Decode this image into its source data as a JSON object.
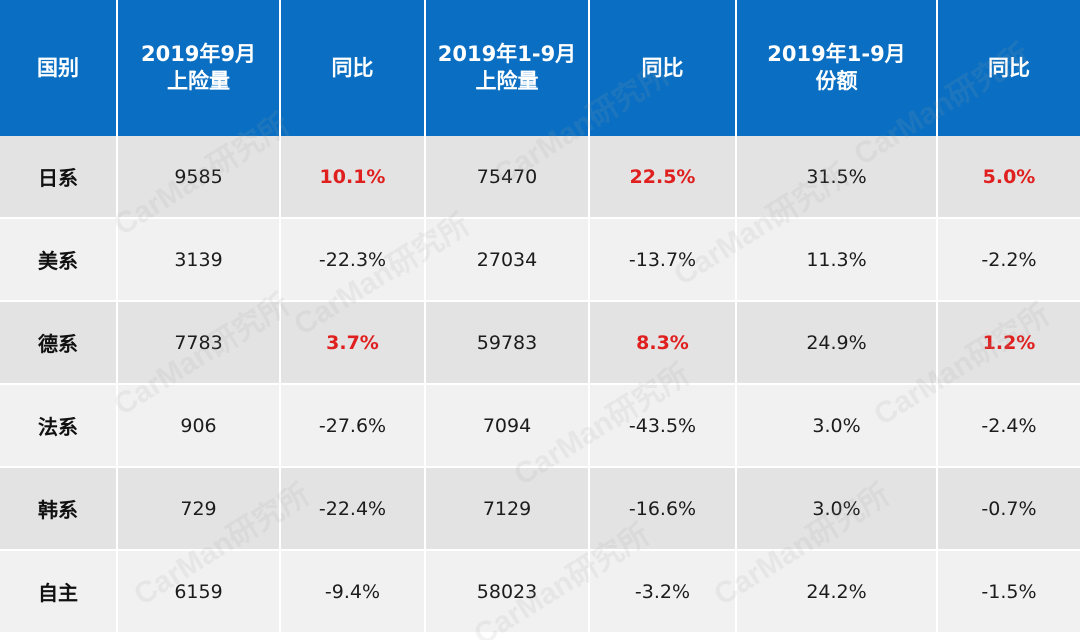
{
  "header": [
    "国别",
    "2019年9月\n上险量",
    "同比",
    "2019年1-9月\n上险量",
    "同比",
    "2019年1-9月\n份额",
    "同比"
  ],
  "rows": [
    {
      "country": "日系",
      "sep": "9585",
      "sep_yoy": "10.1%",
      "ytd": "75470",
      "ytd_yoy": "22.5%",
      "share": "31.5%",
      "share_yoy": "5.0%",
      "positive": [
        true,
        true,
        true
      ]
    },
    {
      "country": "美系",
      "sep": "3139",
      "sep_yoy": "-22.3%",
      "ytd": "27034",
      "ytd_yoy": "-13.7%",
      "share": "11.3%",
      "share_yoy": "-2.2%",
      "positive": [
        false,
        false,
        false
      ]
    },
    {
      "country": "德系",
      "sep": "7783",
      "sep_yoy": "3.7%",
      "ytd": "59783",
      "ytd_yoy": "8.3%",
      "share": "24.9%",
      "share_yoy": "1.2%",
      "positive": [
        true,
        true,
        true
      ]
    },
    {
      "country": "法系",
      "sep": "906",
      "sep_yoy": "-27.6%",
      "ytd": "7094",
      "ytd_yoy": "-43.5%",
      "share": "3.0%",
      "share_yoy": "-2.4%",
      "positive": [
        false,
        false,
        false
      ]
    },
    {
      "country": "韩系",
      "sep": "729",
      "sep_yoy": "-22.4%",
      "ytd": "7129",
      "ytd_yoy": "-16.6%",
      "share": "3.0%",
      "share_yoy": "-0.7%",
      "positive": [
        false,
        false,
        false
      ]
    },
    {
      "country": "自主",
      "sep": "6159",
      "sep_yoy": "-9.4%",
      "ytd": "58023",
      "ytd_yoy": "-3.2%",
      "share": "24.2%",
      "share_yoy": "-1.5%",
      "positive": [
        false,
        false,
        false
      ]
    }
  ],
  "watermark": "CarMan研究所",
  "colors": {
    "header_bg": "#0a6fc2",
    "positive_text": "#e01f1f"
  }
}
